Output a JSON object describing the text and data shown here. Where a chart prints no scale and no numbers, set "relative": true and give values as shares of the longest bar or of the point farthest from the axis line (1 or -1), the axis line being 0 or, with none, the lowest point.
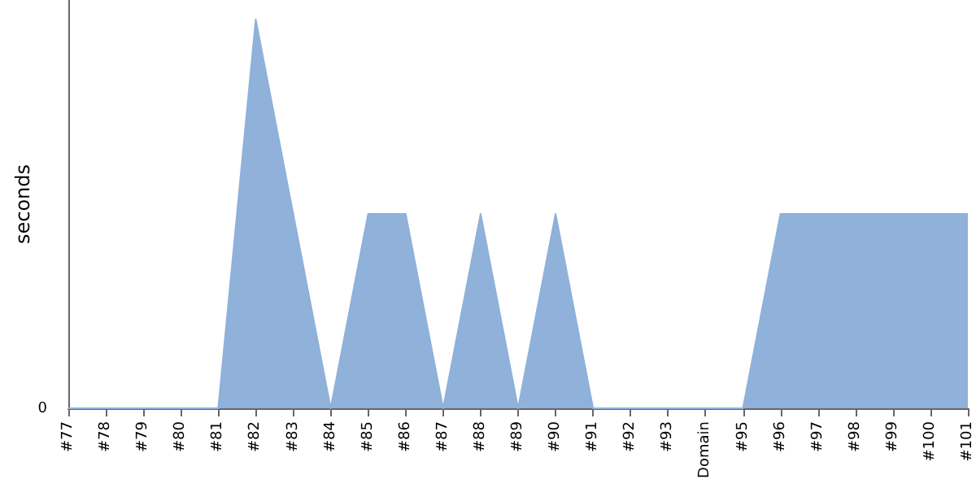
{
  "chart_data": {
    "type": "area",
    "ylabel": "seconds",
    "relative": true,
    "annotations": [
      "0"
    ],
    "grid": false,
    "marker": "none",
    "categories": [
      "#77",
      "#78",
      "#79",
      "#80",
      "#81",
      "#82",
      "#83",
      "#84",
      "#85",
      "#86",
      "#87",
      "#88",
      "#89",
      "#90",
      "#91",
      "#92",
      "#93",
      "Domain",
      "#95",
      "#96",
      "#97",
      "#98",
      "#99",
      "#100",
      "#101"
    ],
    "series": [
      {
        "color": "#8fb1da",
        "values": [
          0,
          0,
          0,
          0,
          0,
          1,
          0.5,
          0,
          0.5,
          0.5,
          0,
          0.5,
          0,
          0.5,
          0,
          0,
          0,
          0,
          0,
          0.5,
          0.5,
          0.5,
          0.5,
          0.5,
          0.5
        ]
      }
    ]
  }
}
